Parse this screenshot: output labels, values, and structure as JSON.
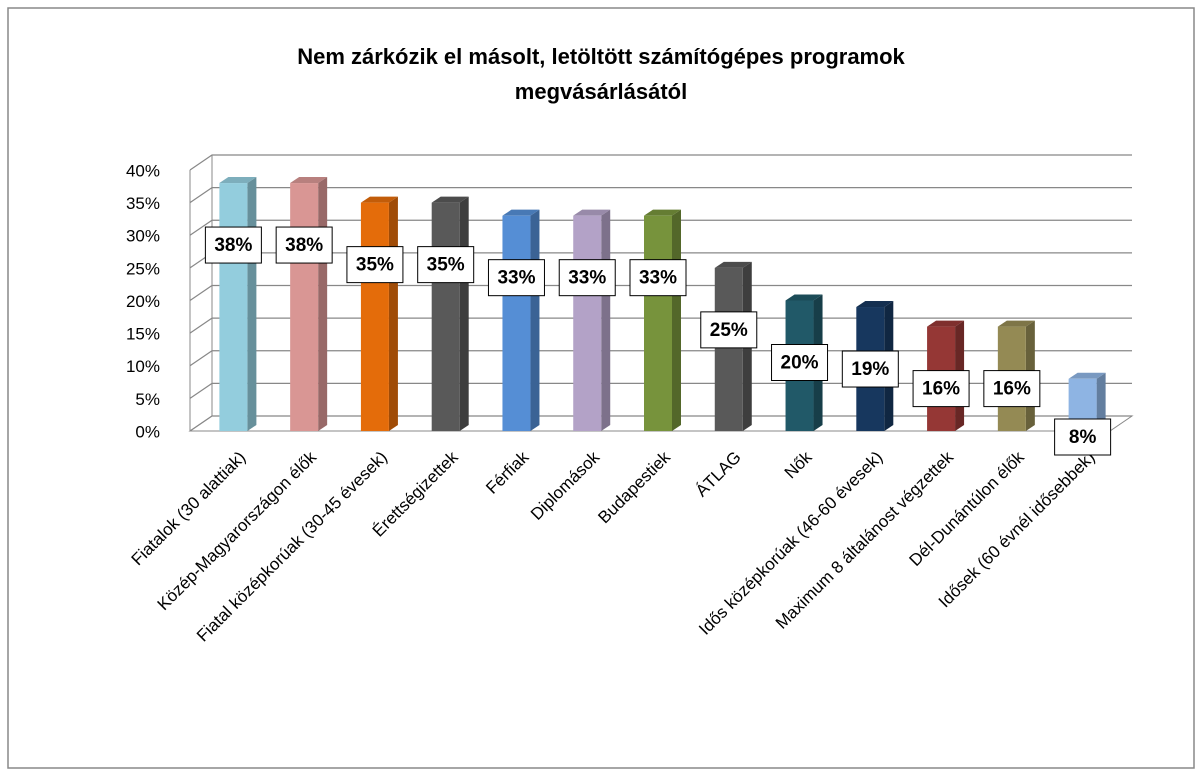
{
  "chart_data": {
    "type": "bar3d",
    "title": [
      "Nem zárkózik el másolt, letöltött számítógépes programok",
      "megvásárlásától"
    ],
    "categories": [
      "Fiatalok (30 alattiak)",
      "Közép-Magyarországon élők",
      "Fiatal középkorúak (30-45 évesek)",
      "Érettségizettek",
      "Férfiak",
      "Diplomások",
      "Budapestiek",
      "ÁTLAG",
      "Nők",
      "Idős középkorúak (46-60 évesek)",
      "Maximum 8 általánost végzettek",
      "Dél-Dunántúlon élők",
      "Idősek (60 évnél idősebbek)"
    ],
    "values": [
      38,
      38,
      35,
      35,
      33,
      33,
      33,
      25,
      20,
      19,
      16,
      16,
      8
    ],
    "value_labels": [
      "38%",
      "38%",
      "35%",
      "35%",
      "33%",
      "33%",
      "33%",
      "25%",
      "20%",
      "19%",
      "16%",
      "16%",
      "8%"
    ],
    "colors": [
      "#93cddd",
      "#d99694",
      "#e46c0a",
      "#595959",
      "#558ed5",
      "#b3a2c7",
      "#77933c",
      "#595959",
      "#215968",
      "#17375e",
      "#953735",
      "#948a54",
      "#8eb4e3"
    ],
    "ylim": [
      0,
      40
    ],
    "yticks": [
      {
        "value": 0,
        "label": "0%"
      },
      {
        "value": 5,
        "label": "5%"
      },
      {
        "value": 10,
        "label": "10%"
      },
      {
        "value": 15,
        "label": "15%"
      },
      {
        "value": 20,
        "label": "20%"
      },
      {
        "value": 25,
        "label": "25%"
      },
      {
        "value": 30,
        "label": "30%"
      },
      {
        "value": 35,
        "label": "35%"
      },
      {
        "value": 40,
        "label": "40%"
      }
    ],
    "grid": true
  }
}
